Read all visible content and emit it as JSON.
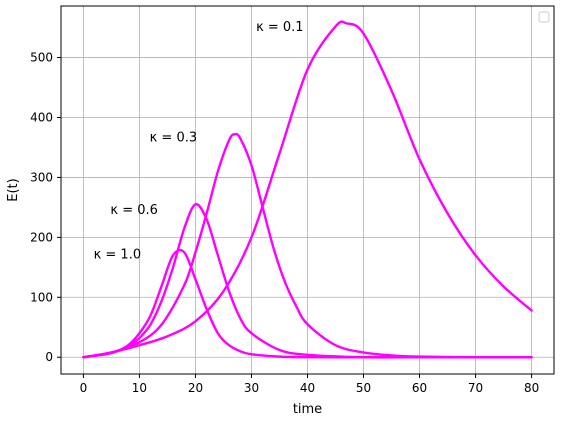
{
  "chart_data": {
    "type": "line",
    "title": "",
    "xlabel": "time",
    "ylabel": "E(t)",
    "xlim": [
      -4,
      84
    ],
    "ylim": [
      -28,
      586
    ],
    "xticks": [
      0,
      10,
      20,
      30,
      40,
      50,
      60,
      70,
      80
    ],
    "yticks": [
      0,
      100,
      200,
      300,
      400,
      500
    ],
    "grid": true,
    "legend": "top-right, empty",
    "line_color": "#ff00ff",
    "series": [
      {
        "x": [
          0,
          4,
          6,
          8,
          10,
          12,
          14,
          16,
          18,
          20,
          22,
          24,
          26,
          28,
          30,
          35,
          40,
          50,
          60,
          70,
          80
        ],
        "values": [
          0,
          5,
          10,
          20,
          40,
          70,
          120,
          170,
          175,
          130,
          80,
          40,
          20,
          10,
          5,
          1,
          0,
          0,
          0,
          0,
          0
        ]
      },
      {
        "x": [
          0,
          4,
          6,
          8,
          10,
          12,
          14,
          16,
          18,
          20,
          22,
          24,
          26,
          28,
          30,
          35,
          40,
          50,
          60,
          70,
          80
        ],
        "values": [
          0,
          5,
          10,
          18,
          32,
          55,
          95,
          150,
          215,
          255,
          230,
          170,
          110,
          65,
          40,
          12,
          4,
          0,
          0,
          0,
          0
        ]
      },
      {
        "x": [
          0,
          5,
          10,
          14,
          18,
          20,
          22,
          24,
          26,
          27,
          28,
          30,
          32,
          34,
          36,
          38,
          40,
          45,
          50,
          55,
          60,
          70,
          80
        ],
        "values": [
          0,
          8,
          25,
          55,
          120,
          175,
          240,
          310,
          362,
          372,
          365,
          320,
          250,
          180,
          125,
          85,
          55,
          20,
          8,
          3,
          1,
          0,
          0
        ]
      },
      {
        "x": [
          0,
          5,
          10,
          15,
          20,
          25,
          30,
          35,
          40,
          45,
          47,
          50,
          55,
          60,
          65,
          70,
          75,
          80
        ],
        "values": [
          0,
          8,
          20,
          35,
          60,
          110,
          200,
          340,
          480,
          552,
          557,
          540,
          445,
          330,
          240,
          170,
          118,
          78
        ]
      }
    ],
    "annotations": [
      {
        "text": "κ = 1.0",
        "x": 10.3,
        "y": 173
      },
      {
        "text": "κ = 0.6",
        "x": 13.3,
        "y": 247
      },
      {
        "text": "κ = 0.3",
        "x": 20.3,
        "y": 368
      },
      {
        "text": "κ = 0.1",
        "x": 39.3,
        "y": 553
      }
    ]
  }
}
